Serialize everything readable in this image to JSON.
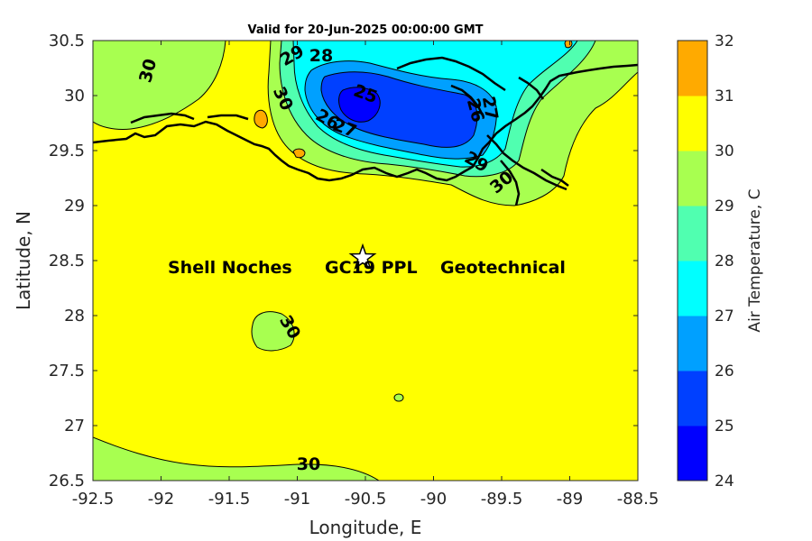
{
  "title": "Valid for 20-Jun-2025 00:00:00 GMT",
  "axes": {
    "xlabel": "Longitude, E",
    "ylabel": "Latitude, N",
    "xlim": [
      -92.5,
      -88.5
    ],
    "ylim": [
      26.5,
      30.5
    ],
    "xticks": [
      "-92.5",
      "-92",
      "-91.5",
      "-91",
      "-90.5",
      "-90",
      "-89.5",
      "-89",
      "-88.5"
    ],
    "yticks": [
      "26.5",
      "27",
      "27.5",
      "28",
      "28.5",
      "29",
      "29.5",
      "30",
      "30.5"
    ]
  },
  "colorbar": {
    "title": "Air Temperature, C",
    "ticks": [
      "24",
      "25",
      "26",
      "27",
      "28",
      "29",
      "30",
      "31",
      "32"
    ],
    "colors": [
      "#0000ff",
      "#0040ff",
      "#00a0ff",
      "#00ffff",
      "#50ffb0",
      "#a8ff50",
      "#ffff00",
      "#ffaa00",
      "#ff5500"
    ]
  },
  "site": {
    "label_parts": [
      "Shell Noches",
      "GC19 PPL",
      "Geotechnical"
    ],
    "marker": "star-icon",
    "lon": -90.5,
    "lat": 28.55
  },
  "contour_labels": [
    "30",
    "29",
    "28",
    "30",
    "25",
    "26",
    "27",
    "26",
    "27",
    "29",
    "30",
    "30",
    "30"
  ],
  "chart_data": {
    "type": "heatmap",
    "title": "Valid for 20-Jun-2025 00:00:00 GMT",
    "xlabel": "Longitude, E",
    "ylabel": "Latitude, N",
    "xlim": [
      -92.5,
      -88.5
    ],
    "ylim": [
      26.5,
      30.5
    ],
    "color_scale": {
      "min": 24,
      "max": 32,
      "label": "Air Temperature, C"
    },
    "contour_levels": [
      25,
      26,
      27,
      28,
      29,
      30
    ],
    "background_value": 30,
    "site": {
      "name": "Shell Noches GC19 PPL Geotechnical",
      "lon": -90.5,
      "lat": 28.55
    }
  }
}
